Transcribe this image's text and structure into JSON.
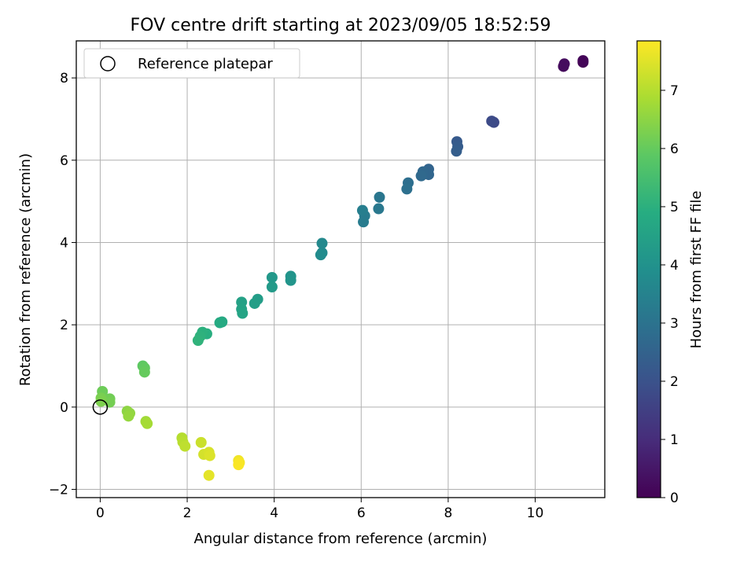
{
  "chart_data": {
    "type": "scatter",
    "title": "FOV centre drift starting at 2023/09/05 18:52:59",
    "xlabel": "Angular distance from reference (arcmin)",
    "ylabel": "Rotation from reference (arcmin)",
    "xlim": [
      -0.55,
      11.6
    ],
    "ylim": [
      -2.2,
      8.9
    ],
    "xticks": [
      0,
      2,
      4,
      6,
      8,
      10
    ],
    "yticks": [
      -2,
      0,
      2,
      4,
      6,
      8
    ],
    "grid": true,
    "legend": {
      "placement": "top-left",
      "entries": [
        "Reference platepar"
      ]
    },
    "reference": {
      "x": 0,
      "y": 0
    },
    "colorbar": {
      "label": "Hours from first FF file",
      "range": [
        0,
        7.85
      ],
      "ticks": [
        0,
        1,
        2,
        3,
        4,
        5,
        6,
        7
      ],
      "colormap": "viridis"
    },
    "series": [
      {
        "points": [
          {
            "x": 11.1,
            "y": 8.38,
            "c": 0.05
          },
          {
            "x": 11.1,
            "y": 8.42,
            "c": 0.1
          },
          {
            "x": 10.65,
            "y": 8.28,
            "c": 0.2
          },
          {
            "x": 10.67,
            "y": 8.34,
            "c": 0.25
          },
          {
            "x": 9.05,
            "y": 6.92,
            "c": 1.75
          },
          {
            "x": 9.0,
            "y": 6.95,
            "c": 1.8
          },
          {
            "x": 8.2,
            "y": 6.45,
            "c": 2.25
          },
          {
            "x": 8.22,
            "y": 6.33,
            "c": 2.3
          },
          {
            "x": 8.19,
            "y": 6.22,
            "c": 2.35
          },
          {
            "x": 7.55,
            "y": 5.78,
            "c": 2.55
          },
          {
            "x": 7.55,
            "y": 5.65,
            "c": 2.6
          },
          {
            "x": 7.42,
            "y": 5.72,
            "c": 2.65
          },
          {
            "x": 7.38,
            "y": 5.62,
            "c": 2.7
          },
          {
            "x": 7.08,
            "y": 5.45,
            "c": 2.85
          },
          {
            "x": 7.05,
            "y": 5.3,
            "c": 2.9
          },
          {
            "x": 6.42,
            "y": 5.1,
            "c": 3.1
          },
          {
            "x": 6.4,
            "y": 4.82,
            "c": 3.15
          },
          {
            "x": 6.08,
            "y": 4.65,
            "c": 3.25
          },
          {
            "x": 6.05,
            "y": 4.5,
            "c": 3.3
          },
          {
            "x": 6.03,
            "y": 4.78,
            "c": 3.35
          },
          {
            "x": 5.1,
            "y": 3.98,
            "c": 3.7
          },
          {
            "x": 5.1,
            "y": 3.75,
            "c": 3.75
          },
          {
            "x": 5.07,
            "y": 3.7,
            "c": 3.8
          },
          {
            "x": 4.38,
            "y": 3.18,
            "c": 4.05
          },
          {
            "x": 4.38,
            "y": 3.08,
            "c": 4.1
          },
          {
            "x": 3.95,
            "y": 3.15,
            "c": 4.2
          },
          {
            "x": 3.95,
            "y": 2.92,
            "c": 4.25
          },
          {
            "x": 3.62,
            "y": 2.62,
            "c": 4.35
          },
          {
            "x": 3.55,
            "y": 2.52,
            "c": 4.4
          },
          {
            "x": 3.25,
            "y": 2.55,
            "c": 4.5
          },
          {
            "x": 3.25,
            "y": 2.38,
            "c": 4.55
          },
          {
            "x": 3.27,
            "y": 2.28,
            "c": 4.6
          },
          {
            "x": 2.8,
            "y": 2.07,
            "c": 4.75
          },
          {
            "x": 2.75,
            "y": 2.05,
            "c": 4.8
          },
          {
            "x": 2.45,
            "y": 1.78,
            "c": 4.95
          },
          {
            "x": 2.35,
            "y": 1.82,
            "c": 5.0
          },
          {
            "x": 2.3,
            "y": 1.72,
            "c": 5.05
          },
          {
            "x": 2.25,
            "y": 1.62,
            "c": 5.1
          },
          {
            "x": 0.98,
            "y": 1.0,
            "c": 5.9
          },
          {
            "x": 1.02,
            "y": 0.95,
            "c": 5.95
          },
          {
            "x": 1.02,
            "y": 0.85,
            "c": 6.0
          },
          {
            "x": 0.05,
            "y": 0.38,
            "c": 6.1
          },
          {
            "x": 0.22,
            "y": 0.2,
            "c": 6.15
          },
          {
            "x": 0.22,
            "y": 0.12,
            "c": 6.2
          },
          {
            "x": 0.02,
            "y": 0.22,
            "c": 6.25
          },
          {
            "x": 0.02,
            "y": 0.14,
            "c": 6.3
          },
          {
            "x": 0.62,
            "y": -0.1,
            "c": 6.5
          },
          {
            "x": 0.68,
            "y": -0.15,
            "c": 6.55
          },
          {
            "x": 0.65,
            "y": -0.22,
            "c": 6.6
          },
          {
            "x": 1.05,
            "y": -0.35,
            "c": 6.75
          },
          {
            "x": 1.08,
            "y": -0.4,
            "c": 6.8
          },
          {
            "x": 1.88,
            "y": -0.75,
            "c": 7.0
          },
          {
            "x": 1.9,
            "y": -0.85,
            "c": 7.05
          },
          {
            "x": 1.95,
            "y": -0.95,
            "c": 7.1
          },
          {
            "x": 2.32,
            "y": -0.86,
            "c": 7.25
          },
          {
            "x": 2.38,
            "y": -1.15,
            "c": 7.35
          },
          {
            "x": 2.5,
            "y": -1.1,
            "c": 7.4
          },
          {
            "x": 2.52,
            "y": -1.18,
            "c": 7.45
          },
          {
            "x": 2.5,
            "y": -1.66,
            "c": 7.55
          },
          {
            "x": 3.18,
            "y": -1.3,
            "c": 7.7
          },
          {
            "x": 3.2,
            "y": -1.35,
            "c": 7.75
          },
          {
            "x": 3.18,
            "y": -1.4,
            "c": 7.8
          }
        ]
      }
    ]
  }
}
